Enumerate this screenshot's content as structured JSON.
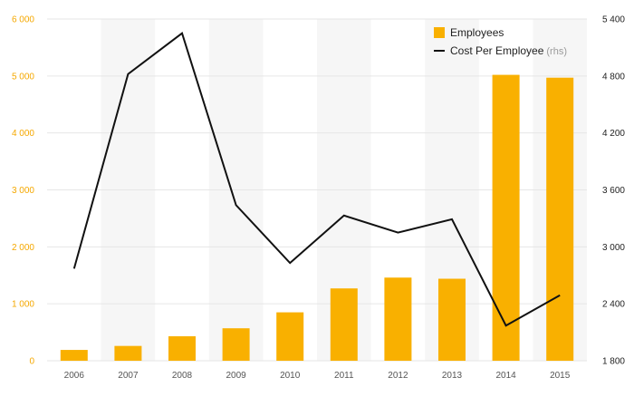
{
  "chart_data": {
    "type": "bar+line",
    "categories": [
      "2006",
      "2007",
      "2008",
      "2009",
      "2010",
      "2011",
      "2012",
      "2013",
      "2014",
      "2015"
    ],
    "series": [
      {
        "name": "Employees",
        "type": "bar",
        "axis": "left",
        "color": "#f9b000",
        "values": [
          190,
          260,
          430,
          570,
          850,
          1270,
          1460,
          1440,
          5020,
          4970
        ]
      },
      {
        "name": "Cost Per Employee",
        "name_note": "(rhs)",
        "type": "line",
        "axis": "right",
        "color": "#111111",
        "values": [
          2770,
          4820,
          5250,
          3440,
          2830,
          3330,
          3150,
          3290,
          2170,
          2490
        ]
      }
    ],
    "y_left": {
      "ticks": [
        0,
        1000,
        2000,
        3000,
        4000,
        5000,
        6000
      ],
      "tick_labels": [
        "0",
        "1 000",
        "2 000",
        "3 000",
        "4 000",
        "5 000",
        "6 000"
      ],
      "range": [
        0,
        6000
      ],
      "color": "#f5a800"
    },
    "y_right": {
      "ticks": [
        1800,
        2400,
        3000,
        3600,
        4200,
        4800,
        5400
      ],
      "tick_labels": [
        "1 800",
        "2 400",
        "3 000",
        "3 600",
        "4 200",
        "4 800",
        "5 400"
      ],
      "range": [
        1800,
        5400
      ]
    },
    "grid": true,
    "legend_position": "top-right",
    "colors": {
      "background": "#ffffff",
      "grid": "#e6e6e6",
      "band": "#f6f6f6"
    }
  }
}
